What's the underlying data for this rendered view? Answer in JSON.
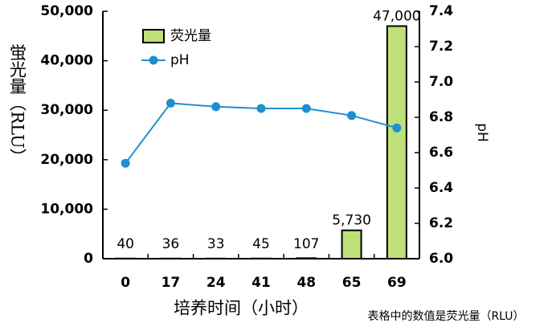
{
  "chart_data": {
    "type": "bar",
    "x_label": "培养时间（小时）",
    "y_label": "蛍光量（RLU）",
    "y2_label": "pH",
    "note": "表格中的数值是荧光量（RLU）",
    "categories": [
      "0",
      "17",
      "24",
      "41",
      "48",
      "65",
      "69"
    ],
    "series": [
      {
        "name": "荧光量",
        "type": "bar",
        "color": "#bfe07a",
        "values": [
          40,
          36,
          33,
          45,
          107,
          5730,
          47000
        ],
        "value_labels": [
          "40",
          "36",
          "33",
          "45",
          "107",
          "5,730",
          "47,000"
        ]
      },
      {
        "name": "pH",
        "type": "line",
        "axis": "y2",
        "color": "#1f8fd0",
        "values": [
          6.54,
          6.88,
          6.86,
          6.85,
          6.85,
          6.81,
          6.74
        ]
      }
    ],
    "ylim": [
      0,
      50000
    ],
    "yticks": [
      0,
      {
        "value": 10000,
        "label": "10,000"
      },
      {
        "value": 20000,
        "label": "20,000"
      },
      {
        "value": 30000,
        "label": "30,000"
      },
      {
        "value": 40000,
        "label": "40,000"
      },
      {
        "value": 50000,
        "label": "50,000"
      }
    ],
    "y2lim": [
      6.0,
      7.4
    ],
    "y2ticks": [
      {
        "value": 6.0,
        "label": "6.0"
      },
      6.2,
      6.4,
      6.6,
      6.8,
      {
        "value": 7.0,
        "label": "7.0"
      },
      7.2,
      7.4
    ],
    "grid": false,
    "legend": "upper left"
  }
}
